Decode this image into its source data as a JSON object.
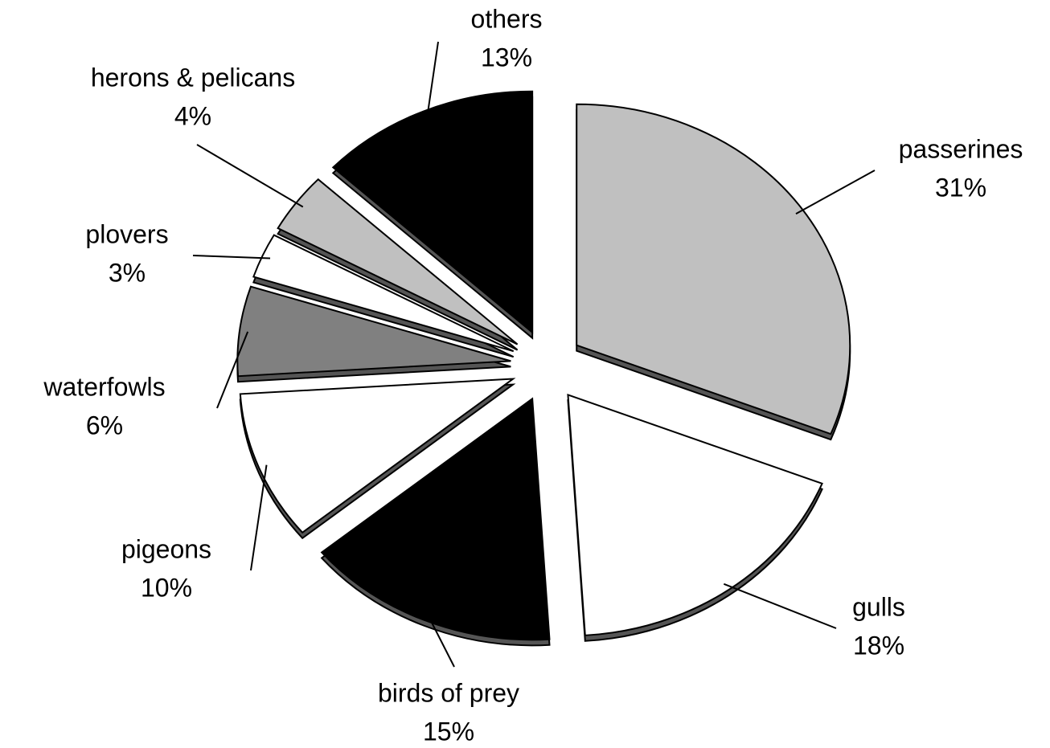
{
  "chart_data": {
    "type": "pie",
    "categories": [
      "passerines",
      "gulls",
      "birds of prey",
      "pigeons",
      "waterfowls",
      "plovers",
      "herons & pelicans",
      "others"
    ],
    "values": [
      31,
      18,
      15,
      10,
      6,
      3,
      4,
      13
    ],
    "value_labels": [
      "31%",
      "18%",
      "15%",
      "10%",
      "6%",
      "3%",
      "4%",
      "13%"
    ],
    "colors": [
      "#c0c0c0",
      "#ffffff",
      "#000000",
      "#ffffff",
      "#808080",
      "#ffffff",
      "#c0c0c0",
      "#000000"
    ]
  }
}
